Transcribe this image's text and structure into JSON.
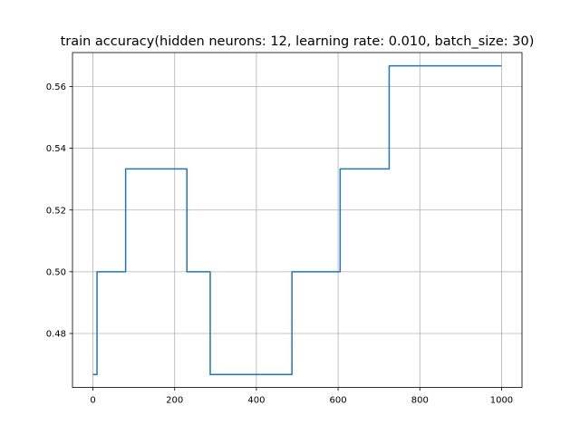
{
  "chart_data": {
    "type": "line",
    "title": "train accuracy(hidden neurons: 12, learning rate: 0.010, batch_size: 30)",
    "xlabel": "",
    "ylabel": "",
    "xlim": [
      -50,
      1050
    ],
    "ylim": [
      0.4625,
      0.571
    ],
    "xticks": [
      0,
      200,
      400,
      600,
      800,
      1000
    ],
    "xtick_labels": [
      "0",
      "200",
      "400",
      "600",
      "800",
      "1000"
    ],
    "yticks": [
      0.48,
      0.5,
      0.52,
      0.54,
      0.56
    ],
    "ytick_labels": [
      "0.48",
      "0.50",
      "0.52",
      "0.54",
      "0.56"
    ],
    "grid": true,
    "series": [
      {
        "color": "#1f77b4",
        "x": [
          0,
          10,
          10,
          80,
          80,
          230,
          230,
          287,
          287,
          487,
          487,
          605,
          605,
          725,
          725,
          1000
        ],
        "y": [
          0.4667,
          0.4667,
          0.5,
          0.5,
          0.5333,
          0.5333,
          0.5,
          0.5,
          0.4667,
          0.4667,
          0.5,
          0.5,
          0.5333,
          0.5333,
          0.5667,
          0.5667
        ]
      }
    ]
  }
}
